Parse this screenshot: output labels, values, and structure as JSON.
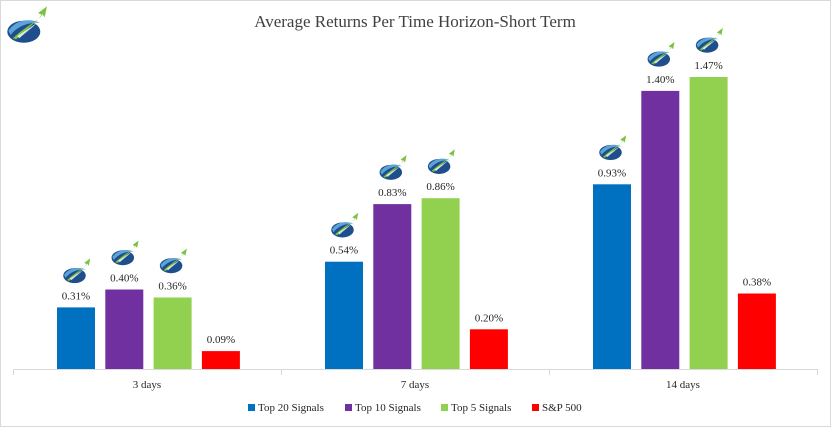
{
  "chart_data": {
    "type": "bar",
    "title": "Average Returns Per Time Horizon-Short Term",
    "xlabel": "",
    "ylabel": "",
    "categories": [
      "3 days",
      "7 days",
      "14 days"
    ],
    "series": [
      {
        "name": "Top 20 Signals",
        "color": "#0070C0",
        "values": [
          0.31,
          0.54,
          0.93
        ],
        "labels": [
          "0.31%",
          "0.54%",
          "0.93%"
        ],
        "has_logo": true
      },
      {
        "name": "Top 10 Signals",
        "color": "#7030A0",
        "values": [
          0.4,
          0.83,
          1.4
        ],
        "labels": [
          "0.40%",
          "0.83%",
          "1.40%"
        ],
        "has_logo": true
      },
      {
        "name": "Top 5 Signals",
        "color": "#92D050",
        "values": [
          0.36,
          0.86,
          1.47
        ],
        "labels": [
          "0.36%",
          "0.86%",
          "1.47%"
        ],
        "has_logo": true
      },
      {
        "name": "S&P 500",
        "color": "#FF0000",
        "values": [
          0.09,
          0.2,
          0.38
        ],
        "labels": [
          "0.09%",
          "0.20%",
          "0.38%"
        ],
        "has_logo": false
      }
    ],
    "ylim": [
      0,
      1.47
    ],
    "grid": false,
    "legend_position": "bottom"
  }
}
